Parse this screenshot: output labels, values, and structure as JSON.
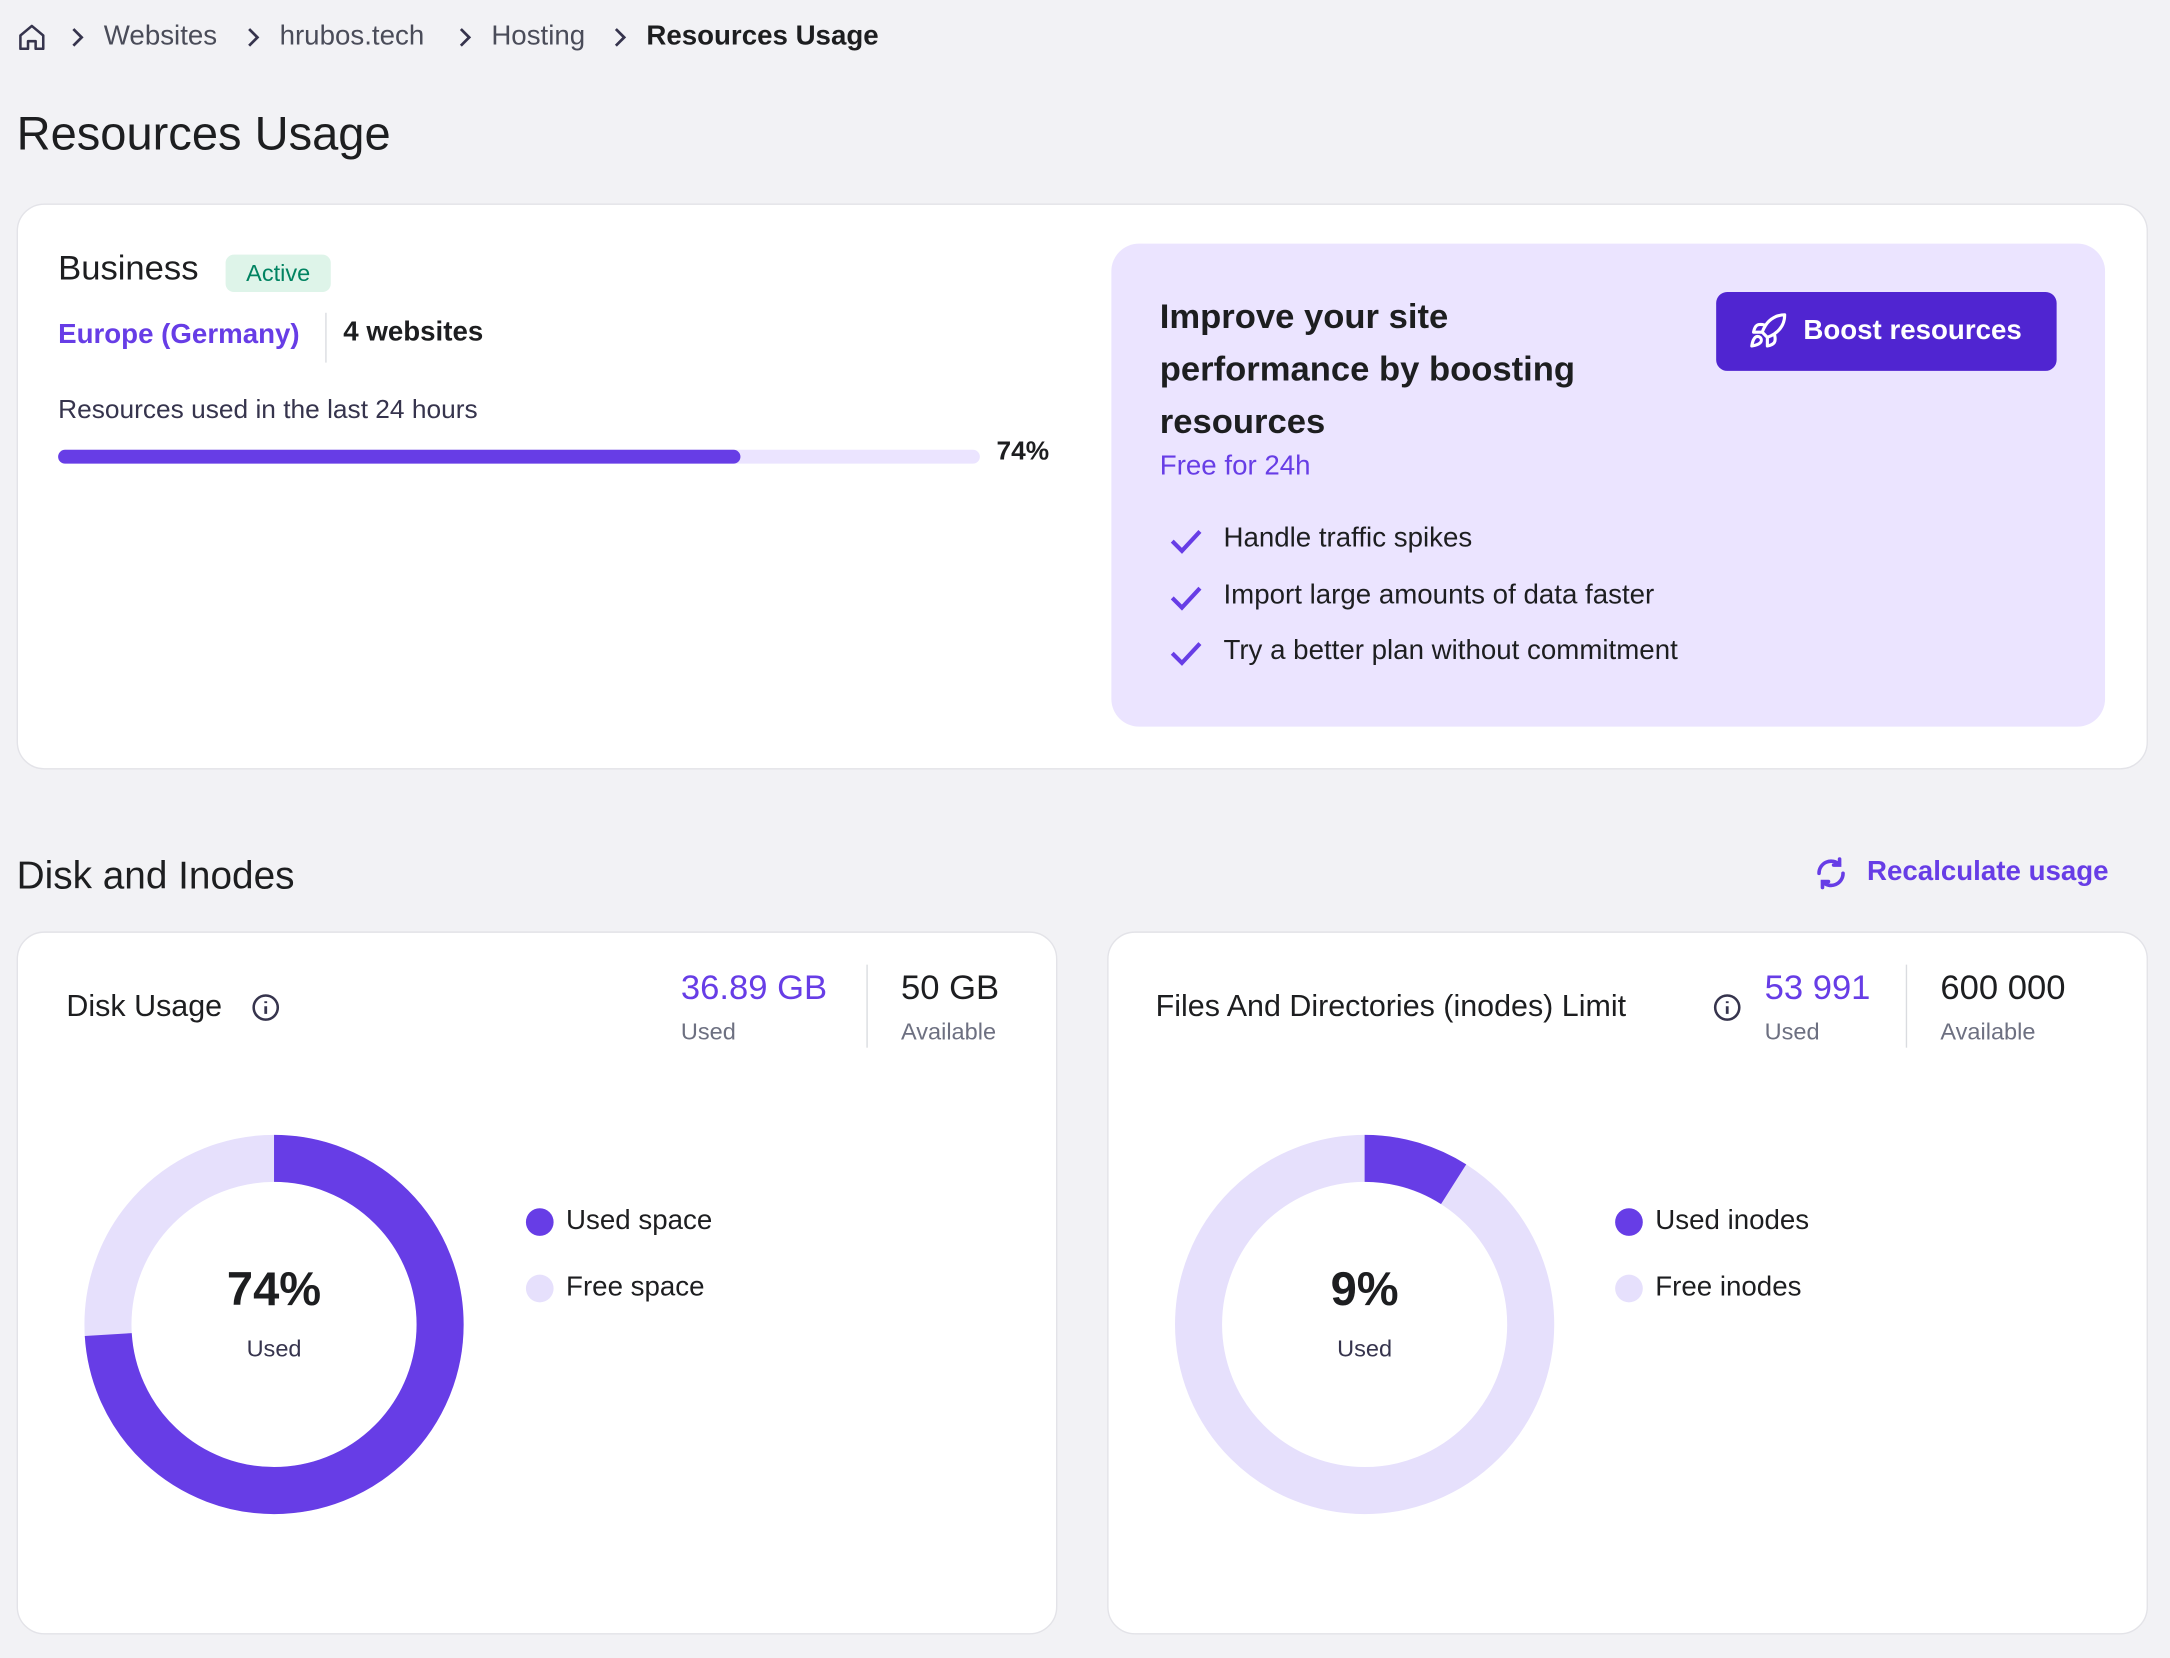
{
  "breadcrumb": [
    "Websites",
    "hrubos.tech",
    "Hosting",
    "Resources Usage"
  ],
  "title": "Resources Usage",
  "plan": {
    "name": "Business",
    "status": "Active",
    "location": "Europe (Germany)",
    "websites": "4 websites",
    "usage_label": "Resources used in the last 24 hours",
    "usage": {
      "value": 74,
      "label": "74%"
    }
  },
  "boost": {
    "heading": "Improve your site performance by boosting resources",
    "subheading": "Free for 24h",
    "button": "Boost resources",
    "benefits": [
      "Handle traffic spikes",
      "Import large amounts of data faster",
      "Try a better plan without commitment"
    ]
  },
  "disk_section": {
    "title": "Disk and Inodes",
    "action": "Recalculate usage",
    "cards": [
      {
        "title": "Disk Usage",
        "used": "36.89 GB",
        "used_label": "Used",
        "available": "50 GB",
        "available_label": "Available",
        "percent": {
          "value": 74,
          "label": "74%"
        },
        "center_label": "Used",
        "legend": [
          "Used space",
          "Free space"
        ]
      },
      {
        "title": "Files And Directories (inodes) Limit",
        "used": "53 991",
        "used_label": "Used",
        "available": "600 000",
        "available_label": "Available",
        "percent": {
          "value": 9,
          "label": "9%"
        },
        "center_label": "Used",
        "legend": [
          "Used inodes",
          "Free inodes"
        ]
      }
    ]
  }
}
